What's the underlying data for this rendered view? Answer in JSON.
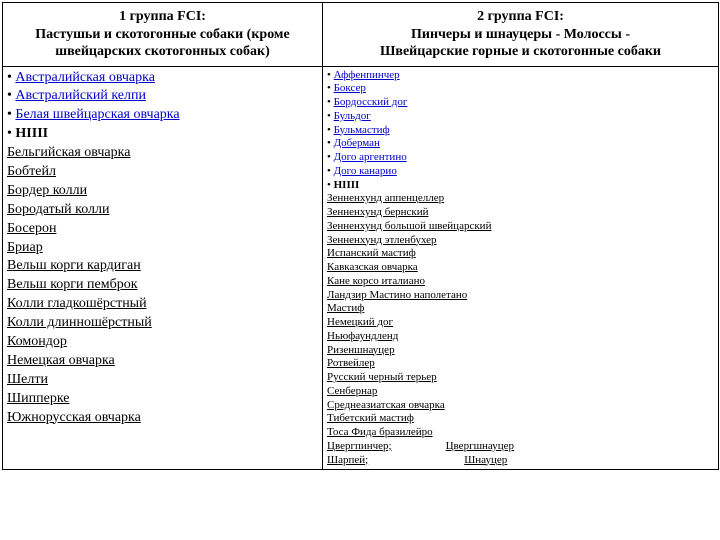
{
  "group1": {
    "title_l1": "1 группа FCI:",
    "title_l2": "Пастушьи и скотогонные собаки (кроме",
    "title_l3": "швейцарских скотогонных собак)",
    "bullets": [
      "Австралийская овчарка",
      "Австралийский келпи",
      "Белая швейцарская овчарка"
    ],
    "nipp": "НIIII",
    "items": [
      "Бельгийская овчарка",
      "Бобтейл",
      "Бордер колли",
      "Бородатый колли",
      "Босерон",
      "Бриар",
      "Вельш корги кардиган",
      "Вельш корги пемброк",
      "Колли гладкошёрстный",
      "Колли длинношёрстный",
      "Комондор",
      "Немецкая овчарка",
      "Шелти",
      "Шипперке",
      "Южнорусская овчарка"
    ]
  },
  "group2": {
    "title_l1": "2 группа FCI:",
    "title_l2": "Пинчеры и шнауцеры - Молоссы -",
    "title_l3": "Швейцарские горные и скотогонные собаки",
    "bullets": [
      "Аффенпинчер",
      "Боксер",
      "Бордосский дог",
      "Бульдог",
      "Бульмастиф",
      "Доберман",
      "Дого аргентино",
      "Дого канарио"
    ],
    "nipp": "НIIII",
    "items": [
      "Зенненхунд аппенцеллер",
      "Зенненхунд бернский",
      "Зенненхунд большой швейцарский",
      "Зенненхунд этленбухер",
      "Испанский мастиф",
      "Кавказская овчарка",
      "Кане корсо италиано",
      "Ландзир Мастино наполетано",
      "Мастиф",
      "Немецкий дог",
      "Ньюфаундленд",
      "Ризеншнауцер",
      "Ротвейлер",
      "Русский черный терьер",
      "Сенбернар",
      "Среднеазиатская овчарка",
      "Тибетский мастиф",
      "Тоса Фида бразилейро"
    ],
    "pair1a": "Цвергпинчер;",
    "pair1b": "Цвергшнауцер",
    "pair2a": "Шарпей;",
    "pair2b": "Шнауцер"
  }
}
